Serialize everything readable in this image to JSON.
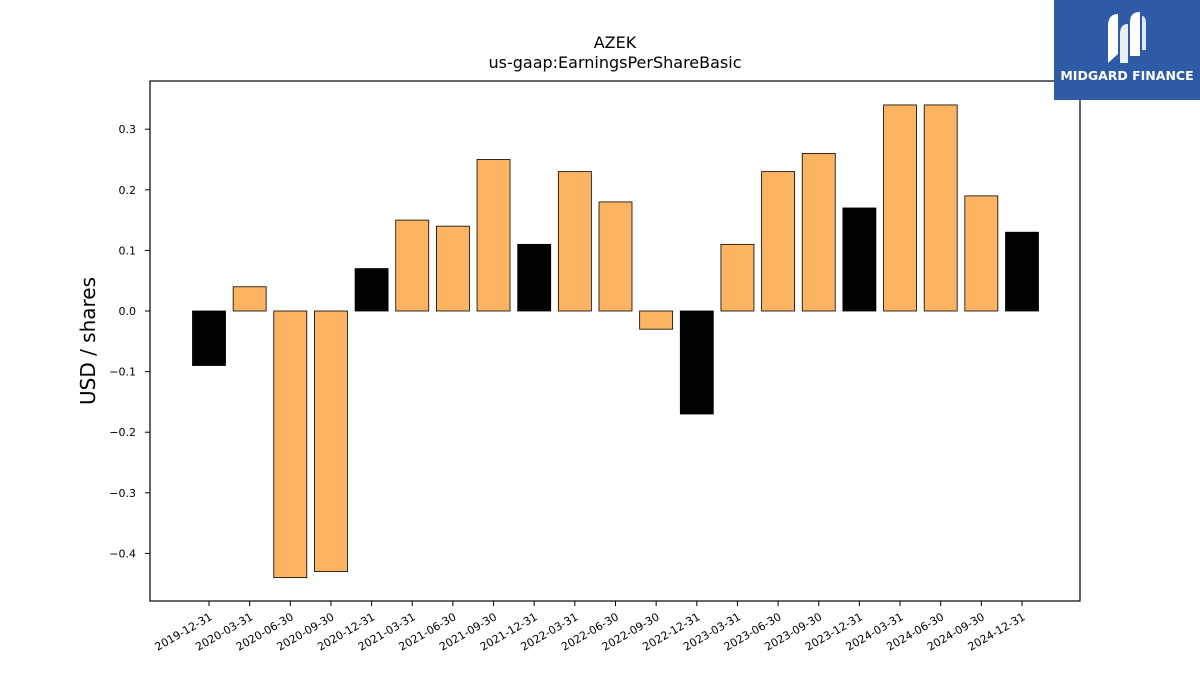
{
  "chart_data": {
    "type": "bar",
    "title": "AZEK",
    "subtitle": "us-gaap:EarningsPerShareBasic",
    "xlabel": "",
    "ylabel": "USD / shares",
    "ylim": [
      -0.48,
      0.38
    ],
    "yticks": [
      -0.4,
      -0.3,
      -0.2,
      -0.1,
      0.0,
      0.1,
      0.2,
      0.3
    ],
    "ytick_labels": [
      "−0.4",
      "−0.3",
      "−0.2",
      "−0.1",
      "0.0",
      "0.1",
      "0.2",
      "0.3"
    ],
    "grid": false,
    "categories": [
      "2019-12-31",
      "2020-03-31",
      "2020-06-30",
      "2020-09-30",
      "2020-12-31",
      "2021-03-31",
      "2021-06-30",
      "2021-09-30",
      "2021-12-31",
      "2022-03-31",
      "2022-06-30",
      "2022-09-30",
      "2022-12-31",
      "2023-03-31",
      "2023-06-30",
      "2023-09-30",
      "2023-12-31",
      "2024-03-31",
      "2024-06-30",
      "2024-09-30",
      "2024-12-31"
    ],
    "values": [
      -0.09,
      0.04,
      -0.44,
      -0.43,
      0.07,
      0.15,
      0.14,
      0.25,
      0.11,
      0.23,
      0.18,
      -0.03,
      -0.17,
      0.11,
      0.23,
      0.26,
      0.17,
      0.34,
      0.34,
      0.19,
      0.13
    ],
    "bar_colors": [
      "#000000",
      "#fdb462",
      "#fdb462",
      "#fdb462",
      "#000000",
      "#fdb462",
      "#fdb462",
      "#fdb462",
      "#000000",
      "#fdb462",
      "#fdb462",
      "#fdb462",
      "#000000",
      "#fdb462",
      "#fdb462",
      "#fdb462",
      "#000000",
      "#fdb462",
      "#fdb462",
      "#fdb462",
      "#000000"
    ]
  },
  "logo": {
    "text": "MIDGARD FINANCE",
    "background": "#2f5ba6"
  }
}
